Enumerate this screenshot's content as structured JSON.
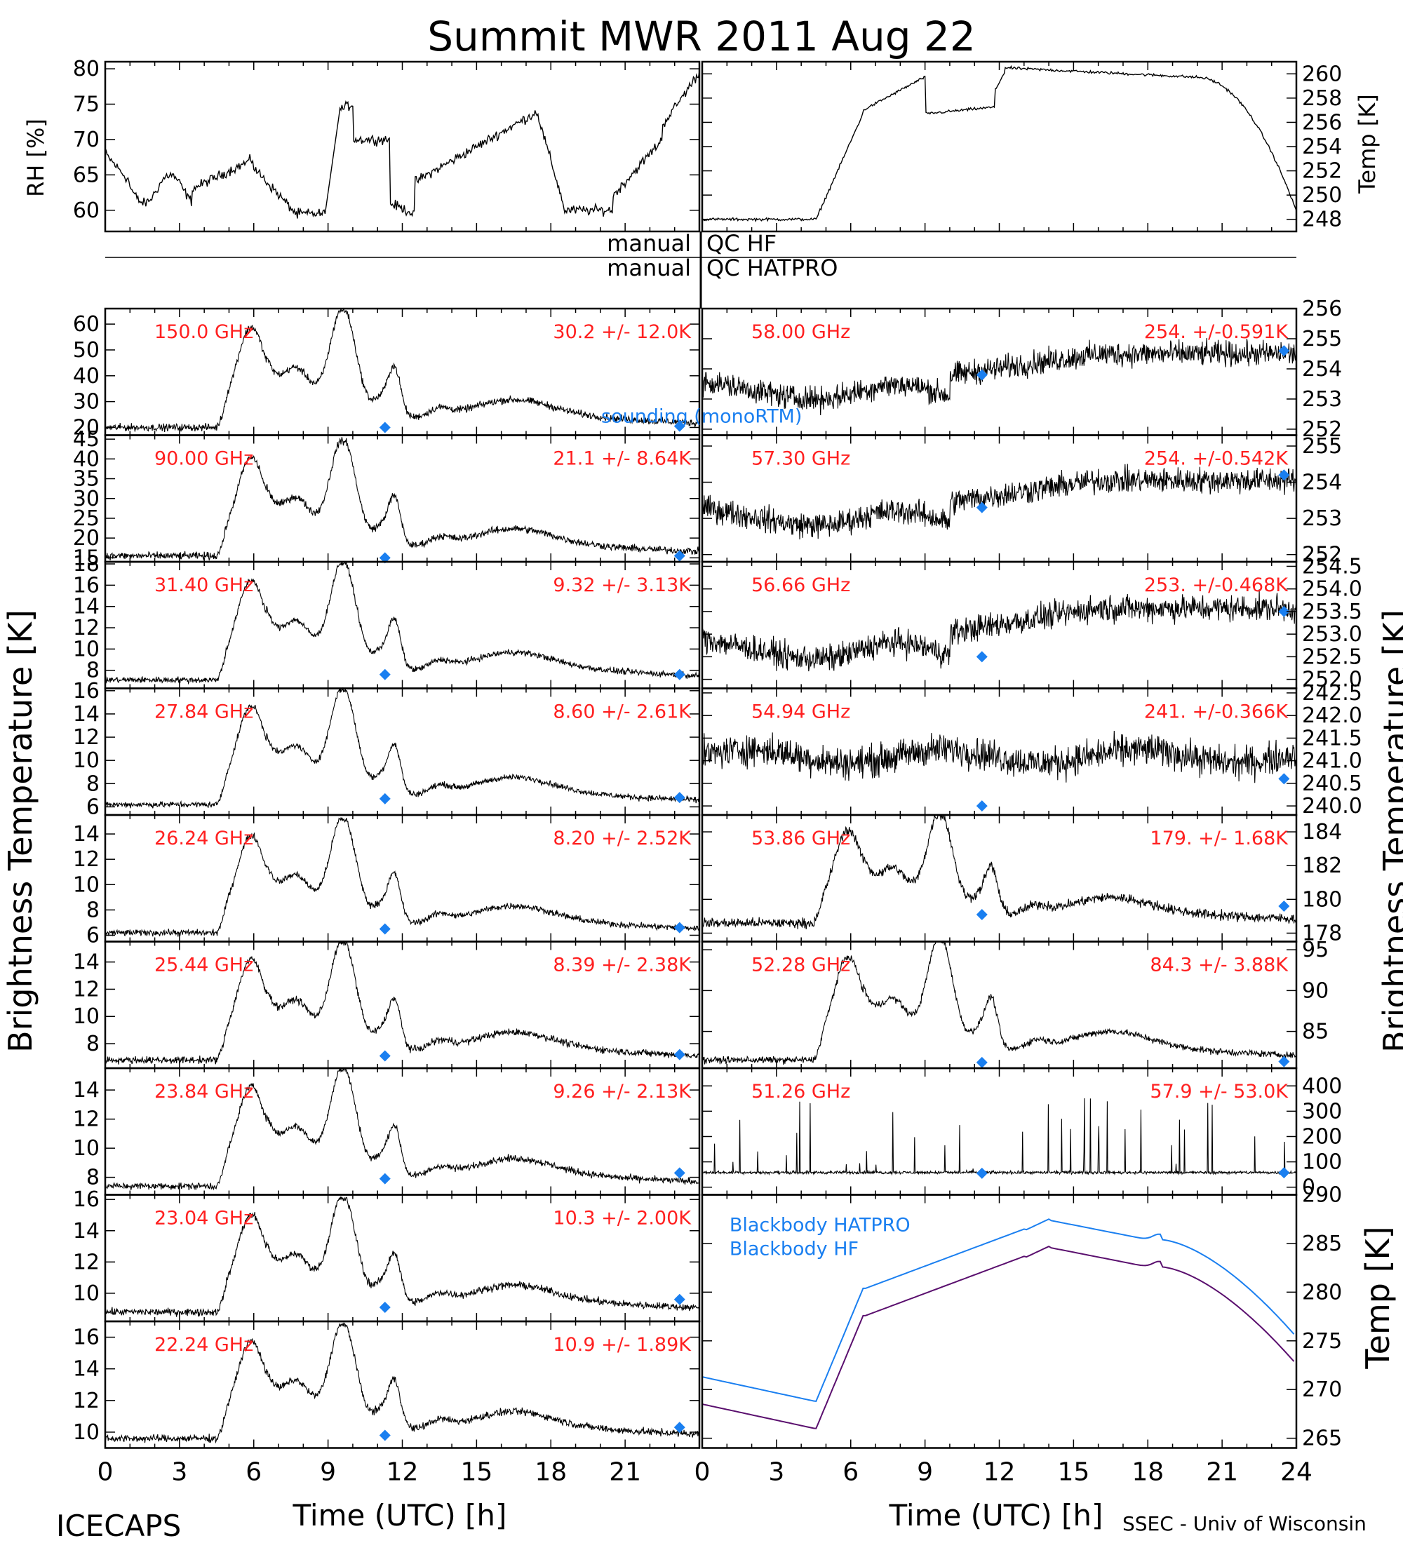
{
  "title": "Summit MWR 2011 Aug 22",
  "footer": {
    "left": "ICECAPS",
    "right": "SSEC - Univ of Wisconsin",
    "xlabel_left": "Time (UTC) [h]",
    "xlabel_right": "Time (UTC) [h]"
  },
  "qc_labels": {
    "hf_left": "manual",
    "hf_right": "QC HF",
    "hatpro_left": "manual",
    "hatpro_right": "QC HATPRO"
  },
  "axis_labels": {
    "rh": "RH [%]",
    "temp_top": "Temp [K]",
    "tb_left": "Brightness Temperature [K]",
    "tb_right": "Brightness Temperature [K]",
    "temp_bottom": "Temp [K]"
  },
  "colors": {
    "annotation": "#ff2020",
    "sounding": "#1a7ff0",
    "hatpro": "#1a7ff0",
    "hf": "#5a0f6e",
    "data": "#000000"
  },
  "chart_data": {
    "type": "line",
    "x_ticks": [
      0,
      3,
      6,
      9,
      12,
      15,
      18,
      21,
      24
    ],
    "x_tick_labels_left": [
      "0",
      "3",
      "6",
      "9",
      "12",
      "15",
      "18",
      "21"
    ],
    "x_tick_labels_right": [
      "0",
      "3",
      "6",
      "9",
      "12",
      "15",
      "18",
      "21",
      "24"
    ],
    "xlim": [
      0,
      24
    ],
    "legend_sounding": "sounding (monoRTM)",
    "panels": [
      {
        "id": "rh",
        "ylim": [
          57,
          81
        ],
        "yticks": [
          60,
          65,
          70,
          75,
          80
        ],
        "yticklabels": [
          "60",
          "65",
          "70",
          "75",
          "80"
        ],
        "profile": "rh",
        "noise": 0.6,
        "gap": [
          8.9,
          9.4
        ]
      },
      {
        "id": "temp",
        "ylim": [
          247,
          261
        ],
        "yticks": [
          248,
          250,
          252,
          254,
          256,
          258,
          260
        ],
        "yticklabels": [
          "248",
          "250",
          "252",
          "254",
          "256",
          "258",
          "260"
        ],
        "profile": "airtemp",
        "noise": 0.1
      },
      {
        "id": "150",
        "freq": "150.0 GHz",
        "stats": "30.2 +/-  12.0K",
        "ylim": [
          17,
          66
        ],
        "yticks": [
          20,
          30,
          40,
          50,
          60
        ],
        "yticklabels": [
          "20",
          "30",
          "40",
          "50",
          "60"
        ],
        "profile": "wv",
        "base": 20,
        "peak": 63,
        "noise": 1.2,
        "sounding": [
          [
            11.3,
            20
          ],
          [
            23.2,
            20.5
          ]
        ]
      },
      {
        "id": "90",
        "freq": "90.00 GHz",
        "stats": "21.1 +/-  8.64K",
        "ylim": [
          14,
          46
        ],
        "yticks": [
          15,
          20,
          25,
          30,
          35,
          40,
          45
        ],
        "yticklabels": [
          "15",
          "20",
          "25",
          "30",
          "35",
          "40",
          "45"
        ],
        "profile": "wv",
        "base": 15.5,
        "peak": 43,
        "noise": 0.8,
        "sounding": [
          [
            11.3,
            15
          ],
          [
            23.2,
            15.5
          ]
        ]
      },
      {
        "id": "31",
        "freq": "31.40 GHz",
        "stats": "9.32 +/- 3.13K",
        "ylim": [
          6.3,
          18.2
        ],
        "yticks": [
          8,
          10,
          12,
          14,
          16,
          18
        ],
        "yticklabels": [
          "8",
          "10",
          "12",
          "14",
          "16",
          "18"
        ],
        "profile": "wv",
        "base": 7.1,
        "peak": 17.5,
        "noise": 0.25,
        "sounding": [
          [
            11.3,
            7.6
          ],
          [
            23.2,
            7.6
          ]
        ]
      },
      {
        "id": "27",
        "freq": "27.84 GHz",
        "stats": "8.60 +/- 2.61K",
        "ylim": [
          5.3,
          16.2
        ],
        "yticks": [
          6,
          8,
          10,
          12,
          14,
          16
        ],
        "yticklabels": [
          "6",
          "8",
          "10",
          "12",
          "14",
          "16"
        ],
        "profile": "wv",
        "base": 6.2,
        "peak": 15.6,
        "noise": 0.22,
        "sounding": [
          [
            11.3,
            6.7
          ],
          [
            23.2,
            6.8
          ]
        ]
      },
      {
        "id": "26",
        "freq": "26.24 GHz",
        "stats": "8.20 +/- 2.52K",
        "ylim": [
          5.5,
          15.5
        ],
        "yticks": [
          6,
          8,
          10,
          12,
          14
        ],
        "yticklabels": [
          "6",
          "8",
          "10",
          "12",
          "14"
        ],
        "profile": "wv",
        "base": 6.2,
        "peak": 14.7,
        "noise": 0.22,
        "sounding": [
          [
            11.3,
            6.5
          ],
          [
            23.2,
            6.6
          ]
        ]
      },
      {
        "id": "25",
        "freq": "25.44 GHz",
        "stats": "8.39 +/- 2.38K",
        "ylim": [
          6.2,
          15.5
        ],
        "yticks": [
          8,
          10,
          12,
          14
        ],
        "yticklabels": [
          "8",
          "10",
          "12",
          "14"
        ],
        "profile": "wv",
        "base": 6.8,
        "peak": 15,
        "noise": 0.22,
        "sounding": [
          [
            11.3,
            7.1
          ],
          [
            23.2,
            7.2
          ]
        ]
      },
      {
        "id": "23.84",
        "freq": "23.84 GHz",
        "stats": "9.26 +/- 2.13K",
        "ylim": [
          6.8,
          15.5
        ],
        "yticks": [
          8,
          10,
          12,
          14
        ],
        "yticklabels": [
          "8",
          "10",
          "12",
          "14"
        ],
        "profile": "wv",
        "base": 7.4,
        "peak": 15,
        "noise": 0.2,
        "sounding": [
          [
            11.3,
            7.9
          ],
          [
            23.2,
            8.3
          ]
        ]
      },
      {
        "id": "23.04",
        "freq": "23.04 GHz",
        "stats": "10.3 +/- 2.00K",
        "ylim": [
          8.2,
          16.3
        ],
        "yticks": [
          10,
          12,
          14,
          16
        ],
        "yticklabels": [
          "10",
          "12",
          "14",
          "16"
        ],
        "profile": "wv",
        "base": 8.8,
        "peak": 15.7,
        "noise": 0.2,
        "sounding": [
          [
            11.3,
            9.1
          ],
          [
            23.2,
            9.6
          ]
        ]
      },
      {
        "id": "22.24",
        "freq": "22.24 GHz",
        "stats": "10.9 +/- 1.89K",
        "ylim": [
          9,
          17
        ],
        "yticks": [
          10,
          12,
          14,
          16
        ],
        "yticklabels": [
          "10",
          "12",
          "14",
          "16"
        ],
        "profile": "wv",
        "base": 9.6,
        "peak": 16.4,
        "noise": 0.2,
        "sounding": [
          [
            11.3,
            9.8
          ],
          [
            23.2,
            10.3
          ]
        ]
      },
      {
        "id": "58",
        "freq": "58.00 GHz",
        "stats": "254. +/-0.591K",
        "ylim": [
          251.8,
          256
        ],
        "yticks": [
          252,
          253,
          254,
          255,
          256
        ],
        "yticklabels": [
          "252",
          "253",
          "254",
          "255",
          "256"
        ],
        "profile": "o2",
        "base": 253.6,
        "amp": 1.2,
        "noise": 0.35,
        "sounding": [
          [
            11.3,
            253.8
          ],
          [
            23.5,
            254.6
          ]
        ]
      },
      {
        "id": "57.3",
        "freq": "57.30 GHz",
        "stats": "254. +/-0.542K",
        "ylim": [
          251.8,
          255.3
        ],
        "yticks": [
          252,
          253,
          254,
          255
        ],
        "yticklabels": [
          "252",
          "253",
          "254",
          "255"
        ],
        "profile": "o2",
        "base": 253.3,
        "amp": 1.0,
        "noise": 0.3,
        "sounding": [
          [
            11.3,
            253.3
          ],
          [
            23.5,
            254.2
          ]
        ]
      },
      {
        "id": "56.66",
        "freq": "56.66 GHz",
        "stats": "253. +/-0.468K",
        "ylim": [
          251.8,
          254.6
        ],
        "yticks": [
          252,
          252.5,
          253,
          253.5,
          254,
          254.5
        ],
        "yticklabels": [
          "252.0",
          "252.5",
          "253.0",
          "253.5",
          "254.0",
          "254.5"
        ],
        "profile": "o2",
        "base": 252.9,
        "amp": 0.9,
        "noise": 0.25,
        "sounding": [
          [
            11.3,
            252.5
          ],
          [
            23.5,
            253.5
          ]
        ]
      },
      {
        "id": "54.94",
        "freq": "54.94 GHz",
        "stats": "241. +/-0.366K",
        "ylim": [
          239.8,
          242.6
        ],
        "yticks": [
          240,
          240.5,
          241,
          241.5,
          242,
          242.5
        ],
        "yticklabels": [
          "240.0",
          "240.5",
          "241.0",
          "241.5",
          "242.0",
          "242.5"
        ],
        "profile": "o2flat",
        "base": 241.1,
        "amp": 0.15,
        "noise": 0.3,
        "sounding": [
          [
            11.3,
            240.0
          ],
          [
            23.5,
            240.6
          ]
        ]
      },
      {
        "id": "53.86",
        "freq": "53.86 GHz",
        "stats": "179. +/- 1.68K",
        "ylim": [
          177.5,
          185
        ],
        "yticks": [
          178,
          180,
          182,
          184
        ],
        "yticklabels": [
          "178",
          "180",
          "182",
          "184"
        ],
        "profile": "wv",
        "base": 178.6,
        "peak": 184.7,
        "noise": 0.25,
        "sounding": [
          [
            11.3,
            179.1
          ],
          [
            23.5,
            179.6
          ]
        ]
      },
      {
        "id": "52.28",
        "freq": "52.28 GHz",
        "stats": "84.3 +/- 3.88K",
        "ylim": [
          80.5,
          96
        ],
        "yticks": [
          85,
          90,
          95
        ],
        "yticklabels": [
          "85",
          "90",
          "95"
        ],
        "profile": "wv",
        "base": 81.5,
        "peak": 95.5,
        "noise": 0.35,
        "sounding": [
          [
            11.3,
            81.2
          ],
          [
            23.5,
            81.3
          ]
        ]
      },
      {
        "id": "51.26",
        "freq": "51.26 GHz",
        "stats": "57.9 +/- 53.0K",
        "ylim": [
          -30,
          470
        ],
        "yticks": [
          0,
          100,
          200,
          300,
          400
        ],
        "yticklabels": [
          "0",
          "100",
          "200",
          "300",
          "400"
        ],
        "profile": "spiky",
        "base": 58,
        "noise": 5,
        "sounding": [
          [
            11.3,
            55
          ],
          [
            23.5,
            57
          ]
        ]
      },
      {
        "id": "bb",
        "ylim": [
          264,
          290
        ],
        "yticks": [
          265,
          270,
          275,
          280,
          285,
          290
        ],
        "yticklabels": [
          "265",
          "270",
          "275",
          "280",
          "285",
          "290"
        ],
        "profile": "bb",
        "series": [
          {
            "name": "Blackbody HATPRO",
            "offset": 2.8
          },
          {
            "name": "Blackbody HF",
            "offset": 0
          }
        ]
      }
    ]
  }
}
